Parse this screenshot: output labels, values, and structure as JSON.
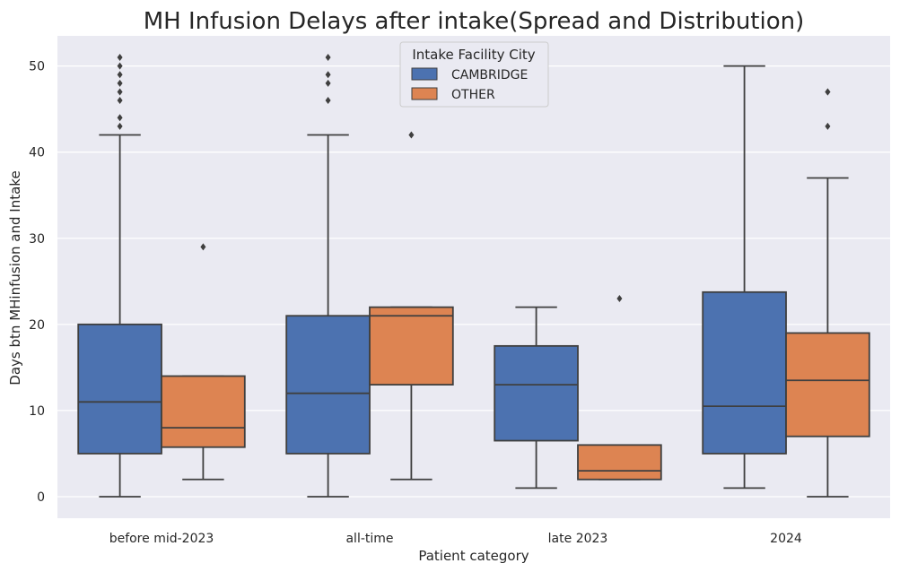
{
  "chart_data": {
    "type": "box",
    "title": "MH Infusion Delays after intake(Spread and Distribution)",
    "xlabel": "Patient category",
    "ylabel": "Days btn MHinfusion and Intake",
    "categories": [
      "before mid-2023",
      "all-time",
      "late 2023",
      "2024"
    ],
    "ylim": [
      -2.5,
      53.5
    ],
    "yticks": [
      0,
      10,
      20,
      30,
      40,
      50
    ],
    "grid": true,
    "legend": {
      "title": "Intake Facility City",
      "placement": "top-center",
      "entries": [
        "CAMBRIDGE",
        "OTHER"
      ]
    },
    "series": [
      {
        "name": "CAMBRIDGE",
        "color": "#4c72b0",
        "boxes": [
          {
            "whisker_low": 0,
            "q1": 5,
            "median": 11,
            "q3": 20,
            "whisker_high": 42,
            "outliers": [
              43,
              44,
              46,
              47,
              48,
              49,
              50,
              51
            ]
          },
          {
            "whisker_low": 0,
            "q1": 5,
            "median": 12,
            "q3": 21,
            "whisker_high": 42,
            "outliers": [
              46,
              48,
              49,
              51
            ]
          },
          {
            "whisker_low": 1,
            "q1": 6.5,
            "median": 13,
            "q3": 17.5,
            "whisker_high": 22,
            "outliers": []
          },
          {
            "whisker_low": 1,
            "q1": 5,
            "median": 10.5,
            "q3": 23.75,
            "whisker_high": 50,
            "outliers": []
          }
        ]
      },
      {
        "name": "OTHER",
        "color": "#dd8452",
        "boxes": [
          {
            "whisker_low": 2,
            "q1": 5.75,
            "median": 8,
            "q3": 14,
            "whisker_high": 14,
            "outliers": [
              29
            ]
          },
          {
            "whisker_low": 2,
            "q1": 13,
            "median": 21,
            "q3": 22,
            "whisker_high": 22,
            "outliers": [
              42
            ]
          },
          {
            "whisker_low": 2,
            "q1": 2,
            "median": 3,
            "q3": 6,
            "whisker_high": 6,
            "outliers": [
              23
            ]
          },
          {
            "whisker_low": 0,
            "q1": 7,
            "median": 13.5,
            "q3": 19,
            "whisker_high": 37,
            "outliers": [
              43,
              47,
              47
            ]
          }
        ]
      }
    ]
  }
}
